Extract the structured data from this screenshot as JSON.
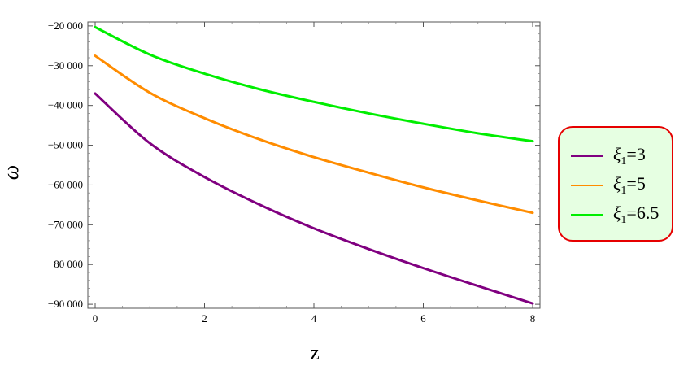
{
  "chart_data": {
    "type": "line",
    "title": "",
    "xlabel": "z",
    "ylabel": "ω",
    "xlim": [
      0,
      8
    ],
    "ylim": [
      -91000,
      -19000
    ],
    "x_ticks": [
      0,
      2,
      4,
      6,
      8
    ],
    "x_tick_labels": [
      "0",
      "2",
      "4",
      "6",
      "8"
    ],
    "y_ticks": [
      -20000,
      -30000,
      -40000,
      -50000,
      -60000,
      -70000,
      -80000,
      -90000
    ],
    "y_tick_labels": [
      "−20 000",
      "−30 000",
      "−40 000",
      "−50 000",
      "−60 000",
      "−70 000",
      "−80 000",
      "−90 000"
    ],
    "grid": false,
    "legend_position": "right",
    "x": [
      0,
      1,
      2,
      3,
      4,
      5,
      6,
      7,
      8
    ],
    "series": [
      {
        "name": "ξ1=3",
        "legend": {
          "symbol": "ξ",
          "sub": "1",
          "eq": "=3"
        },
        "color": "#800080",
        "values": [
          -37000,
          -49500,
          -58000,
          -64900,
          -70900,
          -76100,
          -80900,
          -85400,
          -89800
        ]
      },
      {
        "name": "ξ1=5",
        "legend": {
          "symbol": "ξ",
          "sub": "1",
          "eq": "=5"
        },
        "color": "#ff8c00",
        "values": [
          -27500,
          -36800,
          -43200,
          -48500,
          -53000,
          -56900,
          -60600,
          -63900,
          -67000
        ]
      },
      {
        "name": "ξ1=6.5",
        "legend": {
          "symbol": "ξ",
          "sub": "1",
          "eq": "=6.5"
        },
        "color": "#00ee00",
        "values": [
          -20300,
          -27200,
          -32000,
          -35900,
          -39100,
          -42000,
          -44600,
          -47000,
          -49000
        ]
      }
    ]
  },
  "colors": {
    "legend_border": "#e60000",
    "legend_background": "#e6ffe2",
    "frame": "#555555"
  }
}
